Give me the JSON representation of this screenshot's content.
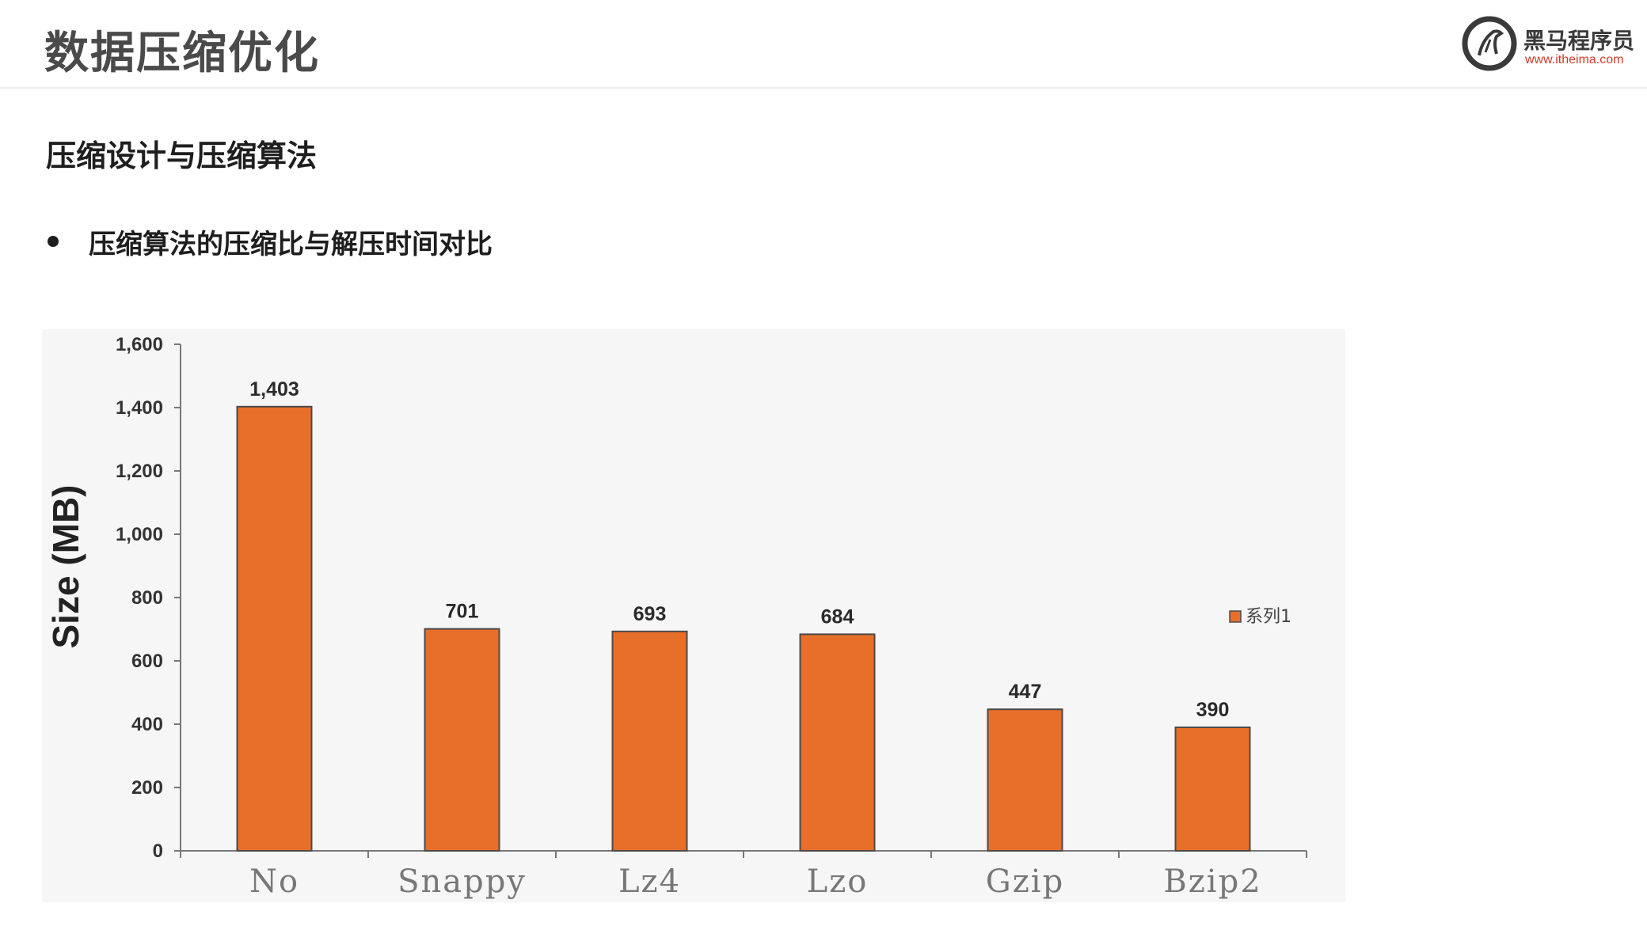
{
  "header": {
    "title": "数据压缩优化",
    "logo": {
      "name": "黑马程序员",
      "url": "www.itheima.com",
      "icon": "horse-logo-icon"
    }
  },
  "section": {
    "heading": "压缩设计与压缩算法",
    "bullet": "压缩算法的压缩比与解压时间对比"
  },
  "colors": {
    "bar": "#e86f2a",
    "bar_stroke": "#4a4a4a",
    "axis": "#777777",
    "logo_red": "#d23a2a"
  },
  "chart_data": {
    "type": "bar",
    "categories": [
      "No",
      "Snappy",
      "Lz4",
      "Lzo",
      "Gzip",
      "Bzip2"
    ],
    "series": [
      {
        "name": "系列1",
        "values": [
          1403,
          701,
          693,
          684,
          447,
          390
        ]
      }
    ],
    "data_labels": [
      "1,403",
      "701",
      "693",
      "684",
      "447",
      "390"
    ],
    "ylabel": "Size (MB)",
    "xlabel": "",
    "ylim": [
      0,
      1600
    ],
    "yticks": [
      0,
      200,
      400,
      600,
      800,
      1000,
      1200,
      1400,
      1600
    ],
    "ytick_labels": [
      "0",
      "200",
      "400",
      "600",
      "800",
      "1,000",
      "1,200",
      "1,400",
      "1,600"
    ],
    "legend": "right",
    "grid": false
  }
}
